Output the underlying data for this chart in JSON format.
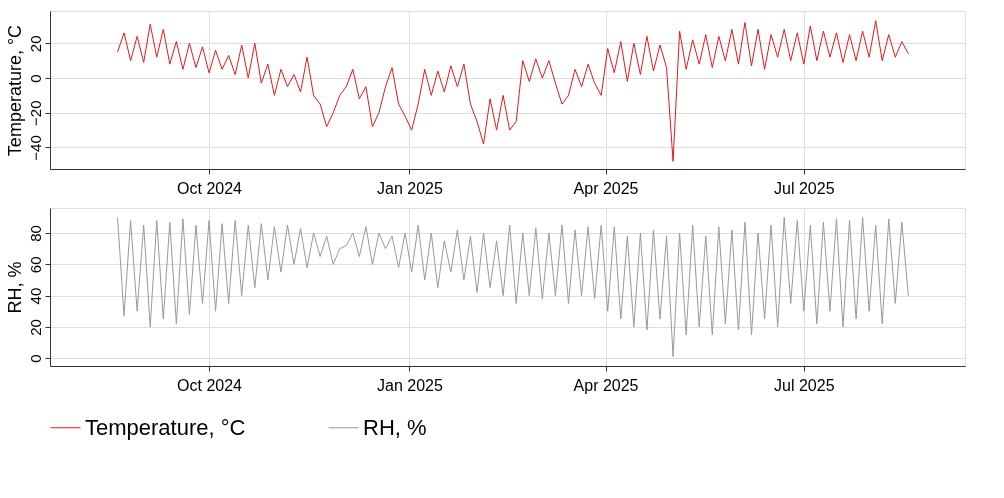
{
  "chart_data": [
    {
      "type": "line",
      "ylabel": "Temperature, °C",
      "ylim": [
        -52.4,
        38.6
      ],
      "yticks": [
        -40,
        -20,
        0,
        20
      ],
      "xlim": [
        "2024-07-20",
        "2025-09-13"
      ],
      "xticks": [
        {
          "value": "2024-10-01",
          "label": "Oct 2024"
        },
        {
          "value": "2025-01-01",
          "label": "Jan 2025"
        },
        {
          "value": "2025-04-01",
          "label": "Apr 2025"
        },
        {
          "value": "2025-07-01",
          "label": "Jul 2025"
        }
      ],
      "grid": true,
      "legend": "bottom",
      "x": [
        "2024-08-20",
        "2024-08-23",
        "2024-08-26",
        "2024-08-29",
        "2024-09-01",
        "2024-09-04",
        "2024-09-07",
        "2024-09-10",
        "2024-09-13",
        "2024-09-16",
        "2024-09-19",
        "2024-09-22",
        "2024-09-25",
        "2024-09-28",
        "2024-10-01",
        "2024-10-04",
        "2024-10-07",
        "2024-10-10",
        "2024-10-13",
        "2024-10-16",
        "2024-10-19",
        "2024-10-22",
        "2024-10-25",
        "2024-10-28",
        "2024-10-31",
        "2024-11-03",
        "2024-11-06",
        "2024-11-09",
        "2024-11-12",
        "2024-11-15",
        "2024-11-18",
        "2024-11-21",
        "2024-11-24",
        "2024-11-27",
        "2024-11-30",
        "2024-12-03",
        "2024-12-06",
        "2024-12-09",
        "2024-12-12",
        "2024-12-15",
        "2024-12-18",
        "2024-12-21",
        "2024-12-24",
        "2024-12-27",
        "2024-12-30",
        "2025-01-02",
        "2025-01-05",
        "2025-01-08",
        "2025-01-11",
        "2025-01-14",
        "2025-01-17",
        "2025-01-20",
        "2025-01-23",
        "2025-01-26",
        "2025-01-29",
        "2025-02-01",
        "2025-02-04",
        "2025-02-07",
        "2025-02-10",
        "2025-02-13",
        "2025-02-16",
        "2025-02-19",
        "2025-02-22",
        "2025-02-25",
        "2025-02-28",
        "2025-03-03",
        "2025-03-06",
        "2025-03-09",
        "2025-03-12",
        "2025-03-15",
        "2025-03-18",
        "2025-03-21",
        "2025-03-24",
        "2025-03-27",
        "2025-03-30",
        "2025-04-02",
        "2025-04-05",
        "2025-04-08",
        "2025-04-11",
        "2025-04-14",
        "2025-04-17",
        "2025-04-20",
        "2025-04-23",
        "2025-04-26",
        "2025-04-29",
        "2025-05-02",
        "2025-05-05",
        "2025-05-08",
        "2025-05-11",
        "2025-05-14",
        "2025-05-17",
        "2025-05-20",
        "2025-05-23",
        "2025-05-26",
        "2025-05-29",
        "2025-06-01",
        "2025-06-04",
        "2025-06-07",
        "2025-06-10",
        "2025-06-13",
        "2025-06-16",
        "2025-06-19",
        "2025-06-22",
        "2025-06-25",
        "2025-06-28",
        "2025-07-01",
        "2025-07-04",
        "2025-07-07",
        "2025-07-10",
        "2025-07-13",
        "2025-07-16",
        "2025-07-19",
        "2025-07-22",
        "2025-07-25",
        "2025-07-28",
        "2025-07-31",
        "2025-08-03",
        "2025-08-06",
        "2025-08-09",
        "2025-08-12",
        "2025-08-15",
        "2025-08-18"
      ],
      "series": [
        {
          "name": "Temperature, °C",
          "color": "#e41a1c",
          "values": [
            15,
            26,
            10,
            24,
            9,
            31,
            12,
            28,
            8,
            21,
            5,
            20,
            6,
            18,
            3,
            16,
            5,
            13,
            2,
            19,
            0,
            20,
            -3,
            8,
            -10,
            5,
            -5,
            2,
            -8,
            12,
            -10,
            -15,
            -28,
            -20,
            -10,
            -5,
            5,
            -12,
            -5,
            -28,
            -20,
            -5,
            6,
            -15,
            -22,
            -30,
            -15,
            5,
            -10,
            4,
            -8,
            7,
            -5,
            8,
            -15,
            -25,
            -38,
            -12,
            -30,
            -10,
            -30,
            -25,
            10,
            -2,
            11,
            0,
            10,
            -3,
            -15,
            -10,
            5,
            -5,
            8,
            -3,
            -10,
            17,
            3,
            21,
            -2,
            20,
            2,
            24,
            4,
            19,
            6,
            -48,
            27,
            5,
            22,
            8,
            25,
            6,
            24,
            10,
            28,
            8,
            32,
            7,
            28,
            5,
            25,
            12,
            28,
            10,
            26,
            8,
            30,
            10,
            27,
            12,
            26,
            9,
            25,
            10,
            27,
            12,
            33,
            10,
            25,
            12,
            21,
            14
          ]
        }
      ]
    },
    {
      "type": "line",
      "ylabel": "RH, %",
      "ylim": [
        -5,
        96
      ],
      "yticks": [
        0,
        20,
        40,
        60,
        80
      ],
      "xlim": [
        "2024-07-20",
        "2025-09-13"
      ],
      "xticks": [
        {
          "value": "2024-10-01",
          "label": "Oct 2024"
        },
        {
          "value": "2025-01-01",
          "label": "Jan 2025"
        },
        {
          "value": "2025-04-01",
          "label": "Apr 2025"
        },
        {
          "value": "2025-07-01",
          "label": "Jul 2025"
        }
      ],
      "grid": true,
      "legend": "bottom",
      "x": [
        "2024-08-20",
        "2024-08-23",
        "2024-08-26",
        "2024-08-29",
        "2024-09-01",
        "2024-09-04",
        "2024-09-07",
        "2024-09-10",
        "2024-09-13",
        "2024-09-16",
        "2024-09-19",
        "2024-09-22",
        "2024-09-25",
        "2024-09-28",
        "2024-10-01",
        "2024-10-04",
        "2024-10-07",
        "2024-10-10",
        "2024-10-13",
        "2024-10-16",
        "2024-10-19",
        "2024-10-22",
        "2024-10-25",
        "2024-10-28",
        "2024-10-31",
        "2024-11-03",
        "2024-11-06",
        "2024-11-09",
        "2024-11-12",
        "2024-11-15",
        "2024-11-18",
        "2024-11-21",
        "2024-11-24",
        "2024-11-27",
        "2024-11-30",
        "2024-12-03",
        "2024-12-06",
        "2024-12-09",
        "2024-12-12",
        "2024-12-15",
        "2024-12-18",
        "2024-12-21",
        "2024-12-24",
        "2024-12-27",
        "2024-12-30",
        "2025-01-02",
        "2025-01-05",
        "2025-01-08",
        "2025-01-11",
        "2025-01-14",
        "2025-01-17",
        "2025-01-20",
        "2025-01-23",
        "2025-01-26",
        "2025-01-29",
        "2025-02-01",
        "2025-02-04",
        "2025-02-07",
        "2025-02-10",
        "2025-02-13",
        "2025-02-16",
        "2025-02-19",
        "2025-02-22",
        "2025-02-25",
        "2025-02-28",
        "2025-03-03",
        "2025-03-06",
        "2025-03-09",
        "2025-03-12",
        "2025-03-15",
        "2025-03-18",
        "2025-03-21",
        "2025-03-24",
        "2025-03-27",
        "2025-03-30",
        "2025-04-02",
        "2025-04-05",
        "2025-04-08",
        "2025-04-11",
        "2025-04-14",
        "2025-04-17",
        "2025-04-20",
        "2025-04-23",
        "2025-04-26",
        "2025-04-29",
        "2025-05-02",
        "2025-05-05",
        "2025-05-08",
        "2025-05-11",
        "2025-05-14",
        "2025-05-17",
        "2025-05-20",
        "2025-05-23",
        "2025-05-26",
        "2025-05-29",
        "2025-06-01",
        "2025-06-04",
        "2025-06-07",
        "2025-06-10",
        "2025-06-13",
        "2025-06-16",
        "2025-06-19",
        "2025-06-22",
        "2025-06-25",
        "2025-06-28",
        "2025-07-01",
        "2025-07-04",
        "2025-07-07",
        "2025-07-10",
        "2025-07-13",
        "2025-07-16",
        "2025-07-19",
        "2025-07-22",
        "2025-07-25",
        "2025-07-28",
        "2025-07-31",
        "2025-08-03",
        "2025-08-06",
        "2025-08-09",
        "2025-08-12",
        "2025-08-15",
        "2025-08-18"
      ],
      "series": [
        {
          "name": "RH, %",
          "color": "#999999",
          "values": [
            90,
            27,
            88,
            30,
            85,
            20,
            88,
            25,
            87,
            22,
            89,
            28,
            85,
            35,
            88,
            30,
            86,
            35,
            88,
            40,
            85,
            45,
            86,
            50,
            84,
            55,
            85,
            60,
            83,
            58,
            80,
            65,
            78,
            60,
            70,
            72,
            80,
            65,
            84,
            60,
            80,
            70,
            78,
            58,
            80,
            55,
            85,
            50,
            80,
            45,
            75,
            55,
            82,
            50,
            78,
            42,
            80,
            45,
            75,
            40,
            85,
            35,
            80,
            40,
            83,
            38,
            80,
            40,
            85,
            35,
            82,
            40,
            84,
            38,
            85,
            30,
            84,
            25,
            78,
            20,
            80,
            18,
            82,
            25,
            78,
            1,
            80,
            15,
            85,
            20,
            78,
            15,
            84,
            22,
            82,
            18,
            87,
            15,
            80,
            25,
            85,
            20,
            90,
            35,
            88,
            30,
            85,
            22,
            87,
            30,
            89,
            20,
            88,
            25,
            90,
            30,
            85,
            22,
            89,
            35,
            87,
            40
          ]
        }
      ]
    }
  ]
}
